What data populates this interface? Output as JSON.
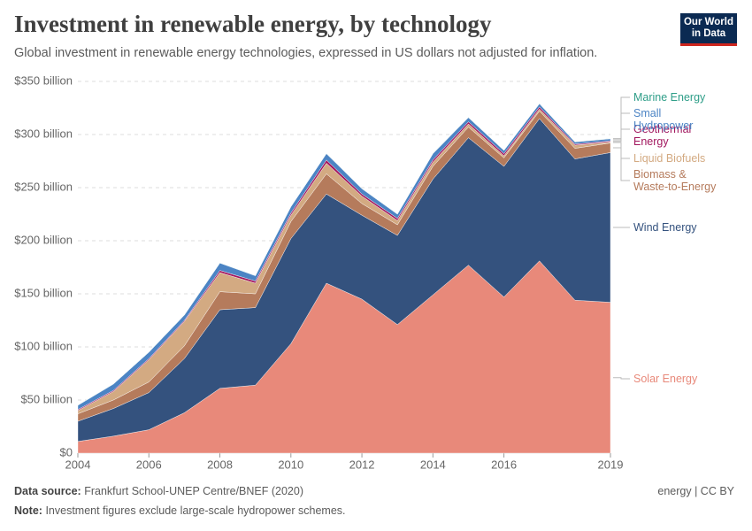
{
  "header": {
    "title": "Investment in renewable energy, by technology",
    "subtitle": "Global investment in renewable energy technologies, expressed in US dollars not adjusted for inflation.",
    "logo": [
      "Our World",
      "in Data"
    ]
  },
  "chart_data": {
    "type": "stacked-area",
    "x": [
      2004,
      2005,
      2006,
      2007,
      2008,
      2009,
      2010,
      2011,
      2012,
      2013,
      2014,
      2015,
      2016,
      2017,
      2018,
      2019
    ],
    "xlim": [
      2004,
      2019
    ],
    "xticks": [
      2004,
      2006,
      2008,
      2010,
      2012,
      2014,
      2016,
      2019
    ],
    "ylim": [
      0,
      350
    ],
    "yticks": [
      {
        "value": 0,
        "label": "$0"
      },
      {
        "value": 50,
        "label": "$50 billion"
      },
      {
        "value": 100,
        "label": "$100 billion"
      },
      {
        "value": 150,
        "label": "$150 billion"
      },
      {
        "value": 200,
        "label": "$200 billion"
      },
      {
        "value": 250,
        "label": "$250 billion"
      },
      {
        "value": 300,
        "label": "$300 billion"
      },
      {
        "value": 350,
        "label": "$350 billion"
      }
    ],
    "grid": true,
    "series": [
      {
        "name": "Solar Energy",
        "color": "#e8897a",
        "values": [
          11,
          16,
          22,
          38,
          61,
          64,
          103,
          160,
          145,
          121,
          149,
          177,
          147,
          181,
          144,
          142
        ]
      },
      {
        "name": "Wind Energy",
        "color": "#34527e",
        "values": [
          19,
          26,
          35,
          51,
          74,
          73,
          99,
          84,
          79,
          84,
          109,
          120,
          123,
          134,
          133,
          141
        ]
      },
      {
        "name": "Biomass & Waste-to-Energy",
        "color": "#b57b5c",
        "values": [
          7,
          8,
          10,
          12,
          17,
          13,
          16,
          19,
          11,
          10,
          12,
          10,
          8,
          7,
          10,
          9
        ]
      },
      {
        "name": "Liquid Biofuels",
        "color": "#d3aa82",
        "values": [
          3,
          8,
          21,
          23,
          18,
          10,
          6,
          10,
          7,
          4,
          4,
          3,
          2,
          2,
          3,
          1
        ]
      },
      {
        "name": "Geothermal Energy",
        "color": "#a2185f",
        "values": [
          1,
          1,
          1,
          1,
          2,
          2,
          2,
          3,
          2,
          2,
          2,
          2,
          2,
          2,
          1,
          1
        ]
      },
      {
        "name": "Small Hydropower",
        "color": "#4c84c4",
        "values": [
          4,
          6,
          6,
          5,
          7,
          5,
          6,
          6,
          5,
          4,
          6,
          4,
          3,
          3,
          2,
          2
        ]
      },
      {
        "name": "Marine Energy",
        "color": "#2e9e88",
        "values": [
          0.2,
          0.2,
          0.2,
          0.2,
          0.2,
          0.2,
          0.2,
          0.2,
          0.2,
          0.2,
          0.2,
          0.2,
          0.2,
          0.2,
          0.2,
          0.2
        ]
      }
    ]
  },
  "footer": {
    "source_label": "Data source:",
    "source": "Frankfurt School-UNEP Centre/BNEF (2020)",
    "note_label": "Note:",
    "note": "Investment figures exclude large-scale hydropower schemes.",
    "license": "energy | CC BY"
  }
}
